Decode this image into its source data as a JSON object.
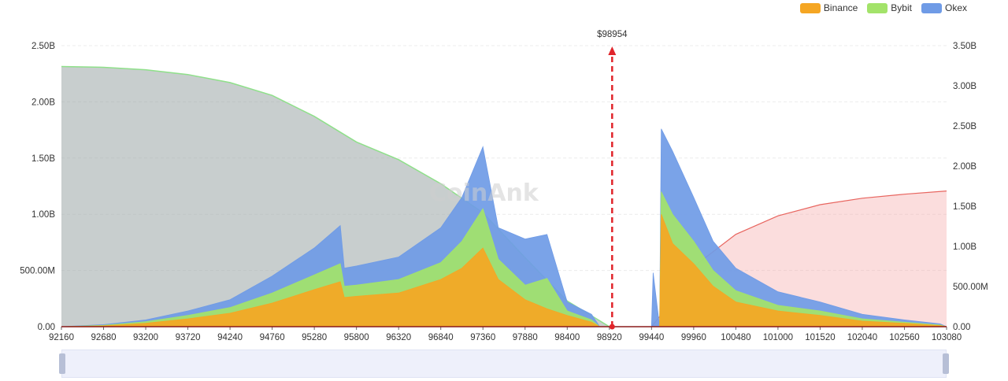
{
  "legend": [
    {
      "name": "Binance",
      "color": "#f5a623"
    },
    {
      "name": "Bybit",
      "color": "#a3e36a"
    },
    {
      "name": "Okex",
      "color": "#6f9be6"
    }
  ],
  "watermark": "CoinAnk",
  "chart_data": {
    "type": "bar",
    "xlabel": "",
    "ylabel": "",
    "x_ticks": [
      "92160",
      "92680",
      "93200",
      "93720",
      "94240",
      "94760",
      "95280",
      "95800",
      "96320",
      "96840",
      "97360",
      "97880",
      "98400",
      "98920",
      "99440",
      "99960",
      "100480",
      "101000",
      "101520",
      "102040",
      "102560",
      "103080"
    ],
    "xlim": [
      92160,
      103080
    ],
    "y_left_ticks": [
      "0.00",
      "500.00M",
      "1.00B",
      "1.50B",
      "2.00B",
      "2.50B"
    ],
    "y_left_lim": [
      0,
      2500000000
    ],
    "y_right_ticks": [
      "0.00",
      "500.00M",
      "1.00B",
      "1.50B",
      "2.00B",
      "2.50B",
      "3.00B",
      "3.50B"
    ],
    "y_right_lim": [
      0,
      3500000000
    ],
    "current_price": {
      "label": "$98954",
      "x": 98954
    },
    "series": [
      {
        "name": "Binance",
        "color": "#f5a623",
        "axis": "left",
        "points": [
          [
            92160,
            0
          ],
          [
            92680,
            8000000
          ],
          [
            93200,
            30000000
          ],
          [
            93720,
            70000000
          ],
          [
            94240,
            120000000
          ],
          [
            94760,
            210000000
          ],
          [
            95280,
            330000000
          ],
          [
            95600,
            400000000
          ],
          [
            95650,
            260000000
          ],
          [
            95800,
            270000000
          ],
          [
            96320,
            300000000
          ],
          [
            96840,
            420000000
          ],
          [
            97100,
            520000000
          ],
          [
            97360,
            700000000
          ],
          [
            97550,
            420000000
          ],
          [
            97880,
            240000000
          ],
          [
            98150,
            160000000
          ],
          [
            98400,
            100000000
          ],
          [
            98700,
            40000000
          ],
          [
            98800,
            0
          ],
          [
            99540,
            0
          ],
          [
            99560,
            1000000000
          ],
          [
            99700,
            740000000
          ],
          [
            99960,
            560000000
          ],
          [
            100200,
            360000000
          ],
          [
            100480,
            220000000
          ],
          [
            101000,
            140000000
          ],
          [
            101520,
            100000000
          ],
          [
            102040,
            50000000
          ],
          [
            102560,
            30000000
          ],
          [
            103000,
            10000000
          ],
          [
            103080,
            0
          ]
        ]
      },
      {
        "name": "Bybit",
        "color": "#a3e36a",
        "axis": "left",
        "points": [
          [
            92160,
            0
          ],
          [
            92680,
            12000000
          ],
          [
            93200,
            45000000
          ],
          [
            93720,
            100000000
          ],
          [
            94240,
            170000000
          ],
          [
            94760,
            300000000
          ],
          [
            95280,
            460000000
          ],
          [
            95600,
            560000000
          ],
          [
            95650,
            360000000
          ],
          [
            95800,
            370000000
          ],
          [
            96320,
            420000000
          ],
          [
            96840,
            570000000
          ],
          [
            97100,
            760000000
          ],
          [
            97360,
            1050000000
          ],
          [
            97550,
            600000000
          ],
          [
            97880,
            370000000
          ],
          [
            98150,
            430000000
          ],
          [
            98400,
            140000000
          ],
          [
            98700,
            60000000
          ],
          [
            98800,
            0
          ],
          [
            99540,
            0
          ],
          [
            99560,
            1200000000
          ],
          [
            99700,
            1000000000
          ],
          [
            99960,
            760000000
          ],
          [
            100200,
            500000000
          ],
          [
            100480,
            320000000
          ],
          [
            101000,
            190000000
          ],
          [
            101520,
            140000000
          ],
          [
            102040,
            70000000
          ],
          [
            102560,
            40000000
          ],
          [
            103000,
            15000000
          ],
          [
            103080,
            0
          ]
        ]
      },
      {
        "name": "Okex",
        "color": "#6f9be6",
        "axis": "left",
        "points": [
          [
            92160,
            0
          ],
          [
            92680,
            18000000
          ],
          [
            93200,
            60000000
          ],
          [
            93720,
            140000000
          ],
          [
            94240,
            240000000
          ],
          [
            94760,
            450000000
          ],
          [
            95280,
            700000000
          ],
          [
            95600,
            900000000
          ],
          [
            95650,
            520000000
          ],
          [
            95800,
            540000000
          ],
          [
            96320,
            620000000
          ],
          [
            96840,
            880000000
          ],
          [
            97100,
            1150000000
          ],
          [
            97360,
            1600000000
          ],
          [
            97550,
            880000000
          ],
          [
            97880,
            780000000
          ],
          [
            98150,
            820000000
          ],
          [
            98400,
            220000000
          ],
          [
            98700,
            110000000
          ],
          [
            98800,
            0
          ],
          [
            99440,
            0
          ],
          [
            99460,
            480000000
          ],
          [
            99540,
            0
          ],
          [
            99560,
            1760000000
          ],
          [
            99700,
            1560000000
          ],
          [
            99960,
            1150000000
          ],
          [
            100200,
            760000000
          ],
          [
            100480,
            520000000
          ],
          [
            101000,
            310000000
          ],
          [
            101520,
            220000000
          ],
          [
            102040,
            110000000
          ],
          [
            102560,
            60000000
          ],
          [
            103000,
            25000000
          ],
          [
            103080,
            0
          ]
        ]
      },
      {
        "name": "",
        "color": "#9aa5a6",
        "axis": "right",
        "points": [
          [
            92160,
            3240000000
          ],
          [
            92680,
            3230000000
          ],
          [
            93200,
            3200000000
          ],
          [
            93720,
            3140000000
          ],
          [
            94240,
            3040000000
          ],
          [
            94760,
            2880000000
          ],
          [
            95280,
            2620000000
          ],
          [
            95800,
            2300000000
          ],
          [
            96320,
            2080000000
          ],
          [
            96840,
            1780000000
          ],
          [
            97360,
            1420000000
          ],
          [
            97880,
            860000000
          ],
          [
            98400,
            320000000
          ],
          [
            98920,
            0
          ]
        ]
      },
      {
        "name": "",
        "color": "#f4a9a9",
        "axis": "right",
        "points": [
          [
            99440,
            0
          ],
          [
            99560,
            150000000
          ],
          [
            99960,
            750000000
          ],
          [
            100480,
            1150000000
          ],
          [
            101000,
            1380000000
          ],
          [
            101520,
            1520000000
          ],
          [
            102040,
            1600000000
          ],
          [
            102560,
            1650000000
          ],
          [
            103080,
            1690000000
          ]
        ]
      }
    ],
    "grid": true,
    "legend_position": "top-right"
  }
}
